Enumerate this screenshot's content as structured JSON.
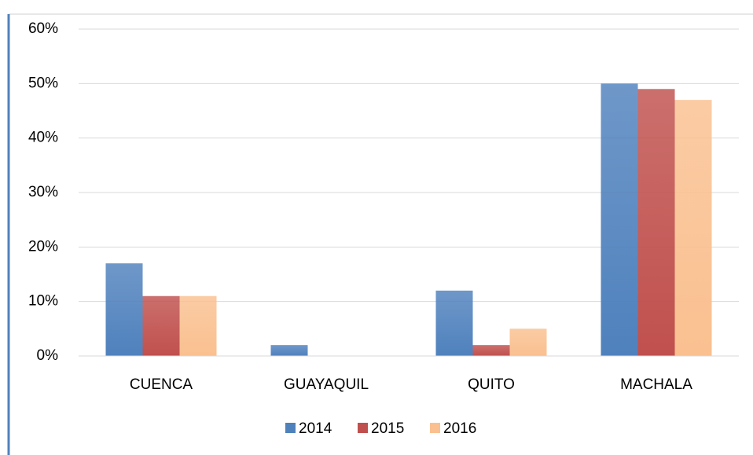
{
  "chart_data": {
    "type": "bar",
    "categories": [
      "CUENCA",
      "GUAYAQUIL",
      "QUITO",
      "MACHALA"
    ],
    "series": [
      {
        "name": "2014",
        "color": "#4f81bd",
        "values": [
          17,
          2,
          12,
          50
        ]
      },
      {
        "name": "2015",
        "color": "#c0504d",
        "values": [
          11,
          0,
          2,
          49
        ]
      },
      {
        "name": "2016",
        "color": "#fac090",
        "values": [
          11,
          0,
          5,
          47
        ]
      }
    ],
    "ylim": [
      0,
      60
    ],
    "yticks": [
      {
        "value": 0,
        "label": "0%"
      },
      {
        "value": 10,
        "label": "10%"
      },
      {
        "value": 20,
        "label": "20%"
      },
      {
        "value": 30,
        "label": "30%"
      },
      {
        "value": 40,
        "label": "40%"
      },
      {
        "value": 50,
        "label": "50%"
      },
      {
        "value": 60,
        "label": "60%"
      }
    ],
    "grid": true,
    "legend": "bottom"
  }
}
